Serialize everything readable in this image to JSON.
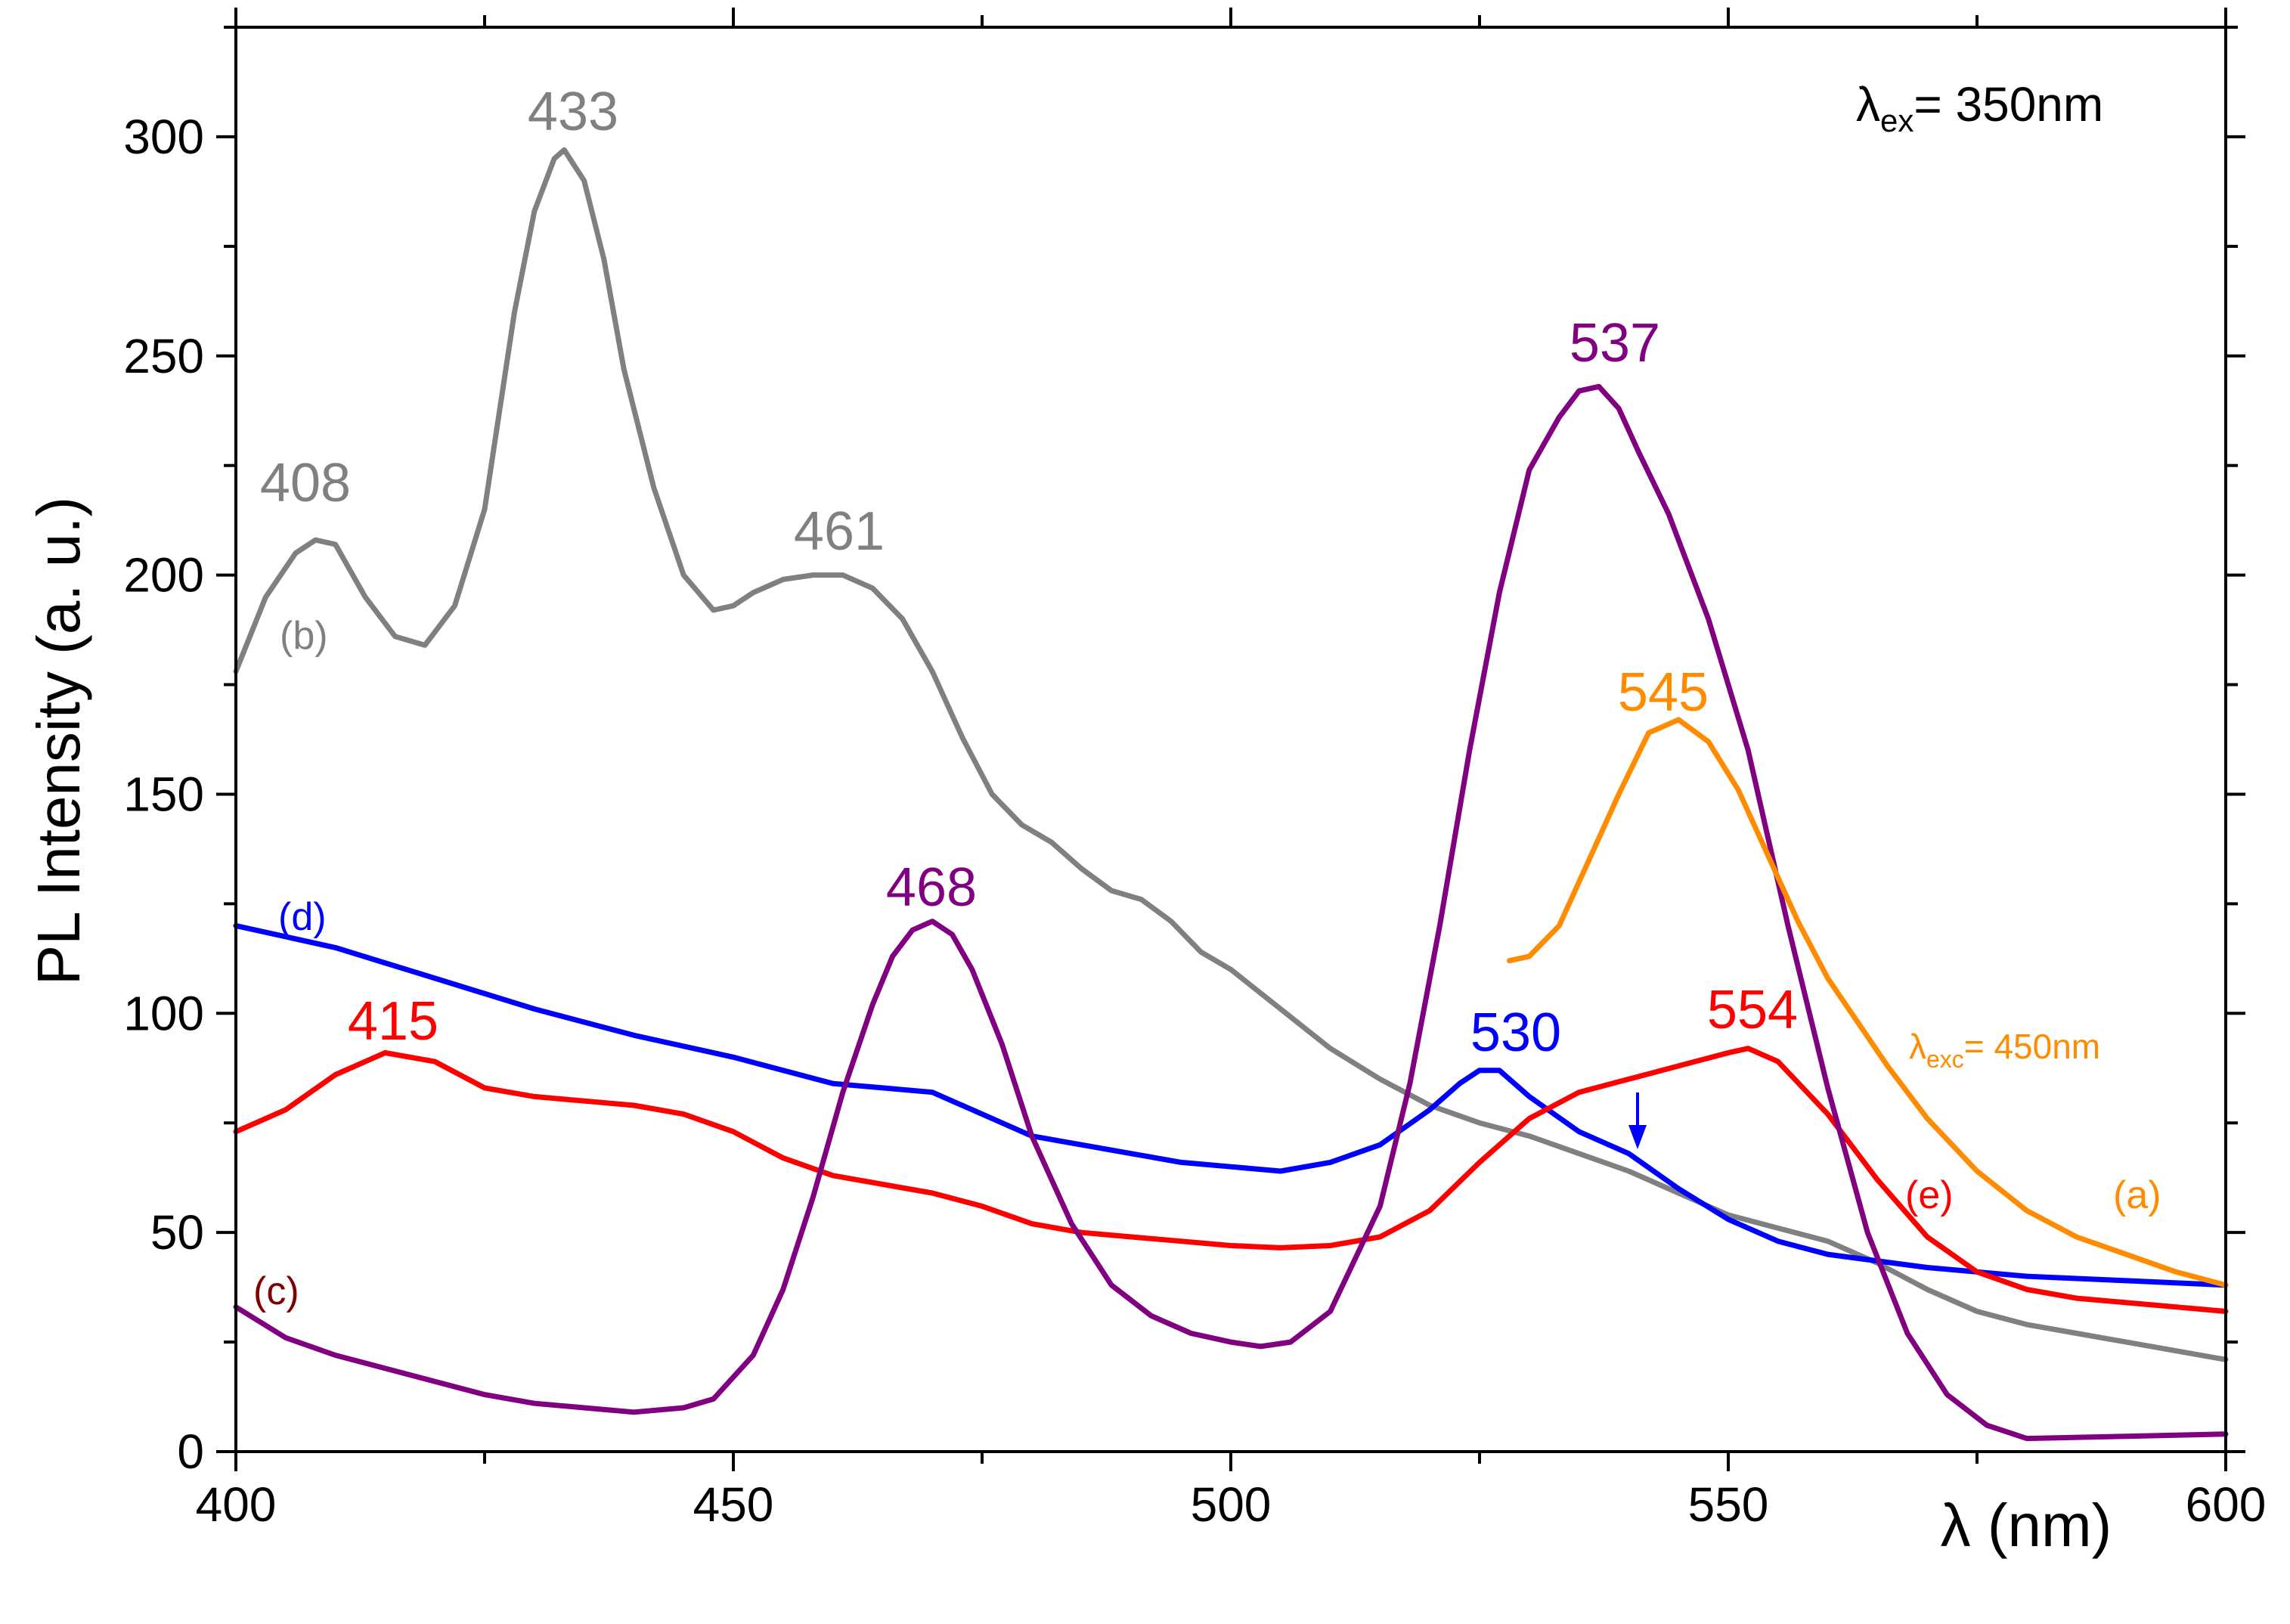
{
  "chart_data": {
    "type": "line",
    "title": "",
    "xlabel": "λ (nm)",
    "ylabel": "PL Intensity (a. u.)",
    "xlim": [
      400,
      600
    ],
    "ylim": [
      0,
      325
    ],
    "xticks": [
      400,
      450,
      500,
      550,
      600
    ],
    "yticks": [
      0,
      50,
      100,
      150,
      200,
      250,
      300
    ],
    "grid": false,
    "annotation_main": {
      "lambda": "λ",
      "sub": "ex",
      "rest": "= 350nm"
    },
    "annotation_a": {
      "lambda": "λ",
      "sub": "exc",
      "rest": "= 450nm",
      "color": "#ff8c00"
    },
    "series": [
      {
        "name": "(b)",
        "color": "#808080",
        "x": [
          400,
          403,
          406,
          408,
          410,
          413,
          416,
          419,
          422,
          425,
          428,
          430,
          432,
          433,
          435,
          437,
          439,
          442,
          445,
          448,
          450,
          452,
          455,
          458,
          461,
          464,
          467,
          470,
          473,
          476,
          479,
          482,
          485,
          488,
          491,
          494,
          497,
          500,
          505,
          510,
          515,
          520,
          525,
          530,
          535,
          540,
          545,
          550,
          555,
          560,
          565,
          570,
          575,
          580,
          585,
          590,
          595,
          600
        ],
        "y": [
          178,
          195,
          205,
          208,
          207,
          195,
          186,
          184,
          193,
          215,
          260,
          283,
          295,
          297,
          290,
          272,
          247,
          220,
          200,
          192,
          193,
          196,
          199,
          200,
          200,
          197,
          190,
          178,
          163,
          150,
          143,
          139,
          133,
          128,
          126,
          121,
          114,
          110,
          101,
          92,
          85,
          79,
          75,
          72,
          68,
          64,
          59,
          54,
          51,
          48,
          43,
          37,
          32,
          29,
          27,
          25,
          23,
          21
        ]
      },
      {
        "name": "(d)",
        "color": "#0000ff",
        "x": [
          400,
          410,
          420,
          430,
          440,
          450,
          460,
          465,
          470,
          475,
          480,
          485,
          490,
          495,
          500,
          505,
          510,
          515,
          520,
          523,
          525,
          527,
          530,
          535,
          540,
          545,
          550,
          555,
          560,
          570,
          580,
          590,
          600
        ],
        "y": [
          120,
          115,
          108,
          101,
          95,
          90,
          84,
          83,
          82,
          77,
          72,
          70,
          68,
          66,
          65,
          64,
          66,
          70,
          78,
          84,
          87,
          87,
          81,
          73,
          68,
          60,
          53,
          48,
          45,
          42,
          40,
          39,
          38
        ]
      },
      {
        "name": "(e)",
        "color": "#ff0000",
        "x": [
          400,
          405,
          410,
          415,
          420,
          425,
          430,
          435,
          440,
          445,
          450,
          455,
          460,
          465,
          470,
          475,
          480,
          485,
          490,
          495,
          500,
          505,
          510,
          515,
          520,
          525,
          530,
          535,
          540,
          545,
          550,
          552,
          555,
          560,
          565,
          570,
          575,
          580,
          585,
          590,
          595,
          600
        ],
        "y": [
          73,
          78,
          86,
          91,
          89,
          83,
          81,
          80,
          79,
          77,
          73,
          67,
          63,
          61,
          59,
          56,
          52,
          50,
          49,
          48,
          47,
          46.5,
          47,
          49,
          55,
          66,
          76,
          82,
          85,
          88,
          91,
          92,
          89,
          77,
          62,
          49,
          41,
          37,
          35,
          34,
          33,
          32
        ]
      },
      {
        "name": "(c)",
        "color": "#800080",
        "x": [
          400,
          405,
          410,
          415,
          420,
          425,
          430,
          435,
          440,
          445,
          448,
          452,
          455,
          458,
          461,
          464,
          466,
          468,
          470,
          472,
          474,
          477,
          480,
          484,
          488,
          492,
          496,
          500,
          503,
          506,
          510,
          515,
          518,
          521,
          524,
          527,
          530,
          533,
          535,
          537,
          539,
          541,
          544,
          548,
          552,
          556,
          560,
          564,
          568,
          572,
          576,
          580,
          590,
          600
        ],
        "y": [
          33,
          26,
          22,
          19,
          16,
          13,
          11,
          10,
          9,
          10,
          12,
          22,
          37,
          58,
          82,
          102,
          113,
          119,
          121,
          118,
          110,
          93,
          72,
          52,
          38,
          31,
          27,
          25,
          24,
          25,
          32,
          56,
          84,
          120,
          160,
          196,
          224,
          236,
          242,
          243,
          238,
          228,
          214,
          190,
          160,
          120,
          83,
          50,
          27,
          13,
          6,
          3,
          3.5,
          4
        ]
      },
      {
        "name": "(a)",
        "color": "#ff8c00",
        "x": [
          528,
          530,
          533,
          536,
          539,
          542,
          545,
          548,
          551,
          554,
          557,
          560,
          563,
          566,
          570,
          575,
          580,
          585,
          590,
          595,
          600
        ],
        "y": [
          112,
          113,
          120,
          135,
          150,
          164,
          167,
          162,
          151,
          136,
          121,
          108,
          98,
          88,
          76,
          64,
          55,
          49,
          45,
          41,
          38
        ]
      }
    ],
    "peak_labels": [
      {
        "text": "408",
        "color": "#808080"
      },
      {
        "text": "433",
        "color": "#808080"
      },
      {
        "text": "461",
        "color": "#808080"
      },
      {
        "text": "468",
        "color": "#800080"
      },
      {
        "text": "537",
        "color": "#800080"
      },
      {
        "text": "545",
        "color": "#ff8c00"
      },
      {
        "text": "554",
        "color": "#ff0000"
      },
      {
        "text": "530",
        "color": "#0000ff"
      },
      {
        "text": "415",
        "color": "#ff0000"
      }
    ],
    "curve_labels": [
      {
        "text": "(b)",
        "color": "#808080"
      },
      {
        "text": "(d)",
        "color": "#0000ff"
      },
      {
        "text": "(c)",
        "color": "#800000"
      },
      {
        "text": "(e)",
        "color": "#ff0000"
      },
      {
        "text": "(a)",
        "color": "#ff8c00"
      }
    ]
  }
}
